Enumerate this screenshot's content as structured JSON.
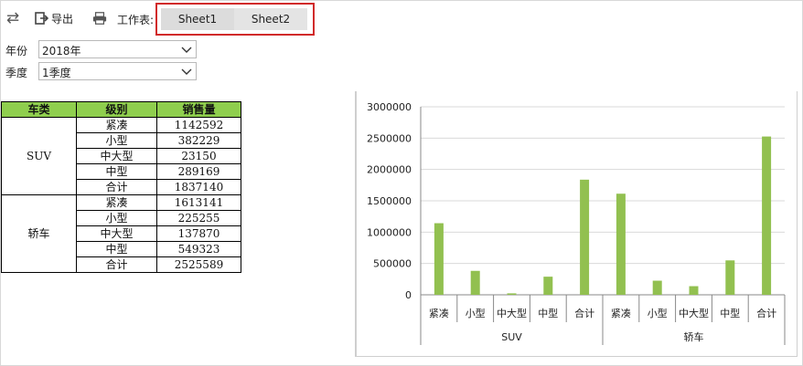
{
  "toolbar": {
    "export_label": "导出",
    "sheet_label": "工作表:"
  },
  "sheets": [
    {
      "label": "Sheet1"
    },
    {
      "label": "Sheet2"
    }
  ],
  "filters": {
    "year": {
      "label": "年份",
      "value": "2018年"
    },
    "quarter": {
      "label": "季度",
      "value": "1季度"
    }
  },
  "table": {
    "headers": [
      "车类",
      "级别",
      "销售量"
    ],
    "groups": [
      {
        "name": "SUV",
        "rows": [
          {
            "level": "紧凑",
            "sales": "1142592"
          },
          {
            "level": "小型",
            "sales": "382229"
          },
          {
            "level": "中大型",
            "sales": "23150"
          },
          {
            "level": "中型",
            "sales": "289169"
          },
          {
            "level": "合计",
            "sales": "1837140"
          }
        ]
      },
      {
        "name": "轿车",
        "rows": [
          {
            "level": "紧凑",
            "sales": "1613141"
          },
          {
            "level": "小型",
            "sales": "225255"
          },
          {
            "level": "中大型",
            "sales": "137870"
          },
          {
            "level": "中型",
            "sales": "549323"
          },
          {
            "level": "合计",
            "sales": "2525589"
          }
        ]
      }
    ]
  },
  "colors": {
    "header_green": "#8fce4e",
    "bar_green": "#92c050",
    "highlight_red": "#d12a2a"
  },
  "chart_data": {
    "type": "bar",
    "title": "",
    "xlabel": "",
    "ylabel": "",
    "ylim": [
      0,
      3000000
    ],
    "yticks": [
      "3000000",
      "2500000",
      "2000000",
      "1500000",
      "1000000",
      "500000",
      "0"
    ],
    "groups": [
      {
        "name": "SUV",
        "categories": [
          "紧凑",
          "小型",
          "中大型",
          "中型",
          "合计"
        ],
        "values": [
          1142592,
          382229,
          23150,
          289169,
          1837140
        ]
      },
      {
        "name": "轿车",
        "categories": [
          "紧凑",
          "小型",
          "中大型",
          "中型",
          "合计"
        ],
        "values": [
          1613141,
          225255,
          137870,
          549323,
          2525589
        ]
      }
    ],
    "grid": true,
    "legend": "none"
  }
}
